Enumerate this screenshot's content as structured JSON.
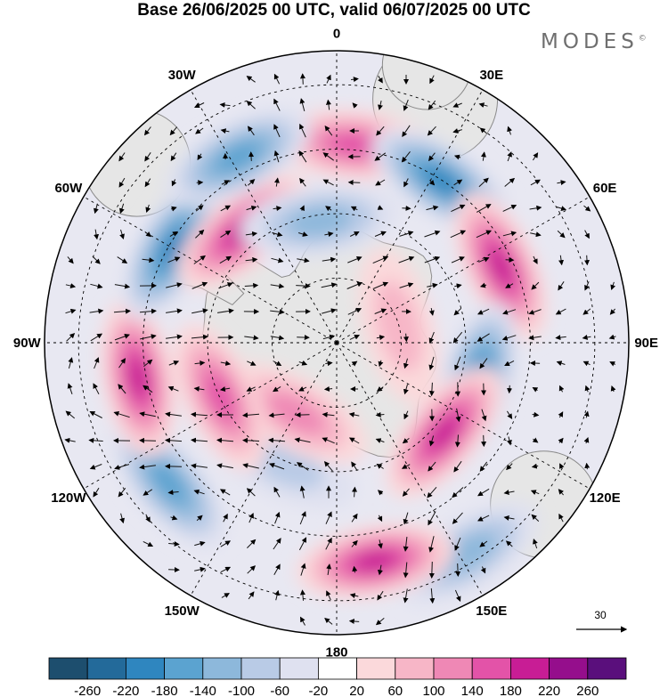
{
  "title": "Base 26/06/2025 00 UTC, valid 06/07/2025 00 UTC",
  "brand": "MODES",
  "brand_mark": "©",
  "map": {
    "projection": "south-polar-stereographic",
    "longitude_labels": [
      "0",
      "30E",
      "60E",
      "90E",
      "120E",
      "150E",
      "180",
      "150W",
      "120W",
      "90W",
      "60W",
      "30W"
    ],
    "latitude_circles": 4,
    "land_color": "#e6e6e6",
    "coast_color": "#8a8a8a"
  },
  "vector_reference": {
    "value": "30"
  },
  "colorbar": {
    "ticks": [
      "-260",
      "-220",
      "-180",
      "-140",
      "-100",
      "-60",
      "-20",
      "20",
      "60",
      "100",
      "140",
      "180",
      "220",
      "260"
    ],
    "colors": [
      "#1d4e6e",
      "#236a9a",
      "#2f86bf",
      "#5ba3d0",
      "#8db8db",
      "#b9cbe6",
      "#dfe1f0",
      "#ffffff",
      "#fbd9db",
      "#f7b6c7",
      "#ef88b5",
      "#e353a8",
      "#c81d95",
      "#950e8c",
      "#5a0f7c"
    ]
  },
  "anomaly_cells": [
    {
      "lon": 5,
      "r": 0.68,
      "sign": 1,
      "level": 3
    },
    {
      "lon": 33,
      "r": 0.66,
      "sign": -1,
      "level": 4
    },
    {
      "lon": 65,
      "r": 0.62,
      "sign": 1,
      "level": 4
    },
    {
      "lon": 105,
      "r": 0.5,
      "sign": -1,
      "level": 4
    },
    {
      "lon": 130,
      "r": 0.48,
      "sign": 1,
      "level": 4
    },
    {
      "lon": 148,
      "r": 0.85,
      "sign": -1,
      "level": 2
    },
    {
      "lon": 170,
      "r": 0.76,
      "sign": 1,
      "level": 4
    },
    {
      "lon": -155,
      "r": 0.45,
      "sign": -1,
      "level": 1
    },
    {
      "lon": -150,
      "r": 0.28,
      "sign": 1,
      "level": 2
    },
    {
      "lon": -130,
      "r": 0.75,
      "sign": -1,
      "level": 3
    },
    {
      "lon": -115,
      "r": 0.44,
      "sign": 1,
      "level": 3
    },
    {
      "lon": -100,
      "r": 0.69,
      "sign": 1,
      "level": 4
    },
    {
      "lon": -60,
      "r": 0.65,
      "sign": -1,
      "level": 4
    },
    {
      "lon": -40,
      "r": 0.5,
      "sign": 1,
      "level": 4
    },
    {
      "lon": -28,
      "r": 0.72,
      "sign": -1,
      "level": 3
    },
    {
      "lon": -8,
      "r": 0.42,
      "sign": -1,
      "level": 2
    },
    {
      "lon": 75,
      "r": 0.22,
      "sign": 1,
      "level": 1
    }
  ]
}
